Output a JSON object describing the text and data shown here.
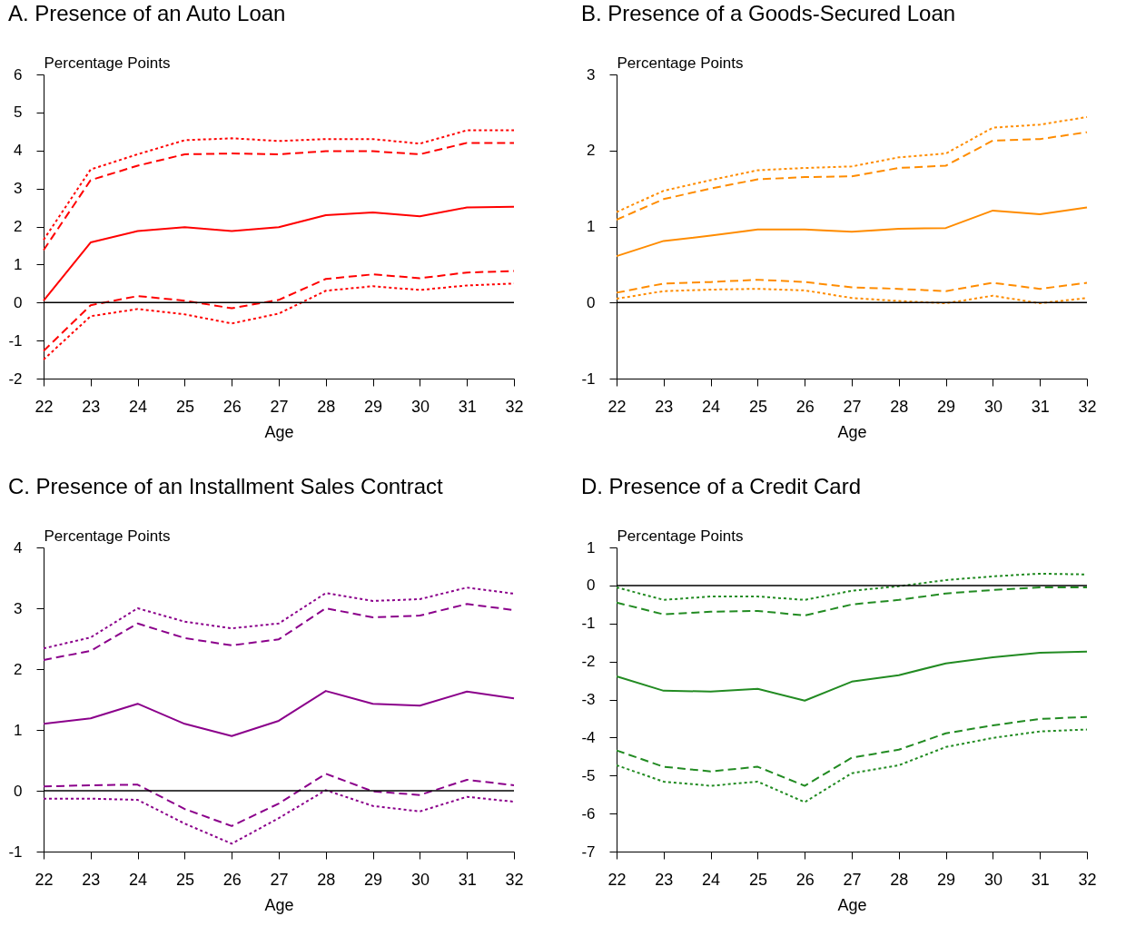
{
  "chart_data": [
    {
      "type": "line",
      "title": "A. Presence of an Auto Loan",
      "ylabel": "Percentage Points",
      "xlabel": "Age",
      "x": [
        22,
        23,
        24,
        25,
        26,
        27,
        28,
        29,
        30,
        31,
        32
      ],
      "xlim": [
        22,
        32
      ],
      "xticks": [
        22,
        23,
        24,
        25,
        26,
        27,
        28,
        29,
        30,
        31,
        32
      ],
      "ylim": [
        -2,
        6
      ],
      "yticks": [
        -2,
        -1,
        0,
        1,
        2,
        3,
        4,
        5,
        6
      ],
      "ref_lines": [
        {
          "axis": "y",
          "value": 0,
          "color": "#000000"
        }
      ],
      "series": [
        {
          "color": "#ff0000",
          "line_style": "solid",
          "values": [
            0.05,
            1.58,
            1.88,
            1.98,
            1.88,
            1.98,
            2.3,
            2.37,
            2.27,
            2.5,
            2.52
          ]
        },
        {
          "color": "#ff0000",
          "line_style": "dashed",
          "values": [
            1.38,
            3.22,
            3.6,
            3.9,
            3.92,
            3.9,
            3.98,
            3.98,
            3.9,
            4.2,
            4.2
          ]
        },
        {
          "color": "#ff0000",
          "line_style": "dotted",
          "values": [
            1.65,
            3.5,
            3.9,
            4.27,
            4.32,
            4.25,
            4.3,
            4.3,
            4.18,
            4.53,
            4.53
          ]
        },
        {
          "color": "#ff0000",
          "line_style": "dashed",
          "values": [
            -1.27,
            -0.07,
            0.17,
            0.05,
            -0.15,
            0.07,
            0.62,
            0.74,
            0.64,
            0.79,
            0.83
          ]
        },
        {
          "color": "#ff0000",
          "line_style": "dotted",
          "values": [
            -1.5,
            -0.36,
            -0.17,
            -0.31,
            -0.55,
            -0.29,
            0.31,
            0.43,
            0.33,
            0.45,
            0.5
          ]
        }
      ]
    },
    {
      "type": "line",
      "title": "B. Presence of a Goods-Secured Loan",
      "ylabel": "Percentage Points",
      "xlabel": "Age",
      "x": [
        22,
        23,
        24,
        25,
        26,
        27,
        28,
        29,
        30,
        31,
        32
      ],
      "xlim": [
        22,
        32
      ],
      "xticks": [
        22,
        23,
        24,
        25,
        26,
        27,
        28,
        29,
        30,
        31,
        32
      ],
      "ylim": [
        -1,
        3
      ],
      "yticks": [
        -1,
        0,
        1,
        2,
        3
      ],
      "ref_lines": [
        {
          "axis": "y",
          "value": 0,
          "color": "#000000"
        }
      ],
      "series": [
        {
          "color": "#ff8c00",
          "line_style": "solid",
          "values": [
            0.61,
            0.81,
            0.88,
            0.96,
            0.96,
            0.93,
            0.97,
            0.98,
            1.21,
            1.16,
            1.25
          ]
        },
        {
          "color": "#ff8c00",
          "line_style": "dashed",
          "values": [
            1.09,
            1.36,
            1.5,
            1.62,
            1.65,
            1.66,
            1.77,
            1.8,
            2.13,
            2.15,
            2.24
          ]
        },
        {
          "color": "#ff8c00",
          "line_style": "dotted",
          "values": [
            1.19,
            1.47,
            1.61,
            1.74,
            1.77,
            1.79,
            1.91,
            1.96,
            2.3,
            2.34,
            2.44
          ]
        },
        {
          "color": "#ff8c00",
          "line_style": "dashed",
          "values": [
            0.13,
            0.25,
            0.27,
            0.3,
            0.27,
            0.2,
            0.18,
            0.15,
            0.26,
            0.18,
            0.26
          ]
        },
        {
          "color": "#ff8c00",
          "line_style": "dotted",
          "values": [
            0.05,
            0.15,
            0.17,
            0.18,
            0.16,
            0.06,
            0.02,
            -0.01,
            0.09,
            -0.01,
            0.06
          ]
        }
      ]
    },
    {
      "type": "line",
      "title": "C. Presence of an Installment Sales Contract",
      "ylabel": "Percentage Points",
      "xlabel": "Age",
      "x": [
        22,
        23,
        24,
        25,
        26,
        27,
        28,
        29,
        30,
        31,
        32
      ],
      "xlim": [
        22,
        32
      ],
      "xticks": [
        22,
        23,
        24,
        25,
        26,
        27,
        28,
        29,
        30,
        31,
        32
      ],
      "ylim": [
        -1,
        4
      ],
      "yticks": [
        -1,
        0,
        1,
        2,
        3,
        4
      ],
      "ref_lines": [
        {
          "axis": "y",
          "value": 0,
          "color": "#000000"
        }
      ],
      "series": [
        {
          "color": "#8b008b",
          "line_style": "solid",
          "values": [
            1.1,
            1.19,
            1.43,
            1.1,
            0.9,
            1.15,
            1.64,
            1.43,
            1.4,
            1.63,
            1.52
          ]
        },
        {
          "color": "#8b008b",
          "line_style": "dashed",
          "values": [
            2.15,
            2.3,
            2.75,
            2.51,
            2.39,
            2.49,
            3.0,
            2.85,
            2.88,
            3.07,
            2.97
          ]
        },
        {
          "color": "#8b008b",
          "line_style": "dotted",
          "values": [
            2.34,
            2.52,
            3.0,
            2.78,
            2.67,
            2.75,
            3.25,
            3.12,
            3.15,
            3.34,
            3.24
          ]
        },
        {
          "color": "#8b008b",
          "line_style": "dashed",
          "values": [
            0.07,
            0.09,
            0.1,
            -0.3,
            -0.58,
            -0.21,
            0.28,
            -0.01,
            -0.07,
            0.18,
            0.09
          ]
        },
        {
          "color": "#8b008b",
          "line_style": "dotted",
          "values": [
            -0.13,
            -0.13,
            -0.15,
            -0.54,
            -0.87,
            -0.45,
            0.01,
            -0.25,
            -0.34,
            -0.1,
            -0.18
          ]
        }
      ]
    },
    {
      "type": "line",
      "title": "D. Presence of a Credit Card",
      "ylabel": "Percentage Points",
      "xlabel": "Age",
      "x": [
        22,
        23,
        24,
        25,
        26,
        27,
        28,
        29,
        30,
        31,
        32
      ],
      "xlim": [
        22,
        32
      ],
      "xticks": [
        22,
        23,
        24,
        25,
        26,
        27,
        28,
        29,
        30,
        31,
        32
      ],
      "ylim": [
        -7,
        1
      ],
      "yticks": [
        -7,
        -6,
        -5,
        -4,
        -3,
        -2,
        -1,
        0,
        1
      ],
      "ref_lines": [
        {
          "axis": "y",
          "value": 0,
          "color": "#000000"
        }
      ],
      "series": [
        {
          "color": "#228b22",
          "line_style": "solid",
          "values": [
            -2.39,
            -2.77,
            -2.79,
            -2.72,
            -3.03,
            -2.53,
            -2.36,
            -2.05,
            -1.89,
            -1.77,
            -1.74
          ]
        },
        {
          "color": "#228b22",
          "line_style": "dashed",
          "values": [
            -0.45,
            -0.76,
            -0.69,
            -0.67,
            -0.79,
            -0.5,
            -0.38,
            -0.21,
            -0.12,
            -0.05,
            -0.05
          ]
        },
        {
          "color": "#228b22",
          "line_style": "dotted",
          "values": [
            -0.05,
            -0.38,
            -0.29,
            -0.29,
            -0.38,
            -0.14,
            -0.02,
            0.14,
            0.24,
            0.31,
            0.29
          ]
        },
        {
          "color": "#228b22",
          "line_style": "dashed",
          "values": [
            -4.34,
            -4.77,
            -4.89,
            -4.77,
            -5.27,
            -4.53,
            -4.32,
            -3.89,
            -3.68,
            -3.51,
            -3.46
          ]
        },
        {
          "color": "#228b22",
          "line_style": "dotted",
          "values": [
            -4.73,
            -5.16,
            -5.27,
            -5.16,
            -5.7,
            -4.94,
            -4.73,
            -4.25,
            -4.01,
            -3.84,
            -3.79
          ]
        }
      ]
    }
  ]
}
